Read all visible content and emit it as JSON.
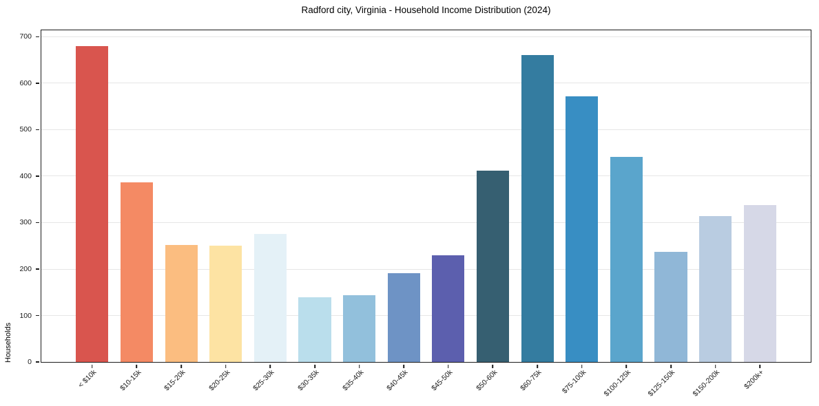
{
  "chart_data": {
    "type": "bar",
    "title": "Radford city, Virginia - Household Income Distribution (2024)",
    "xlabel": "",
    "ylabel": "Households",
    "categories": [
      "< $10k",
      "$10-15k",
      "$15-20k",
      "$20-25k",
      "$25-30k",
      "$30-35k",
      "$35-40k",
      "$40-45k",
      "$45-50k",
      "$50-60k",
      "$60-75k",
      "$75-100k",
      "$100-125k",
      "$125-150k",
      "$150-200k",
      "$200k+"
    ],
    "values": [
      680,
      387,
      252,
      250,
      276,
      140,
      144,
      191,
      230,
      412,
      660,
      572,
      441,
      237,
      314,
      338
    ],
    "bar_colors": [
      "#d9554e",
      "#f48a64",
      "#fbbd80",
      "#fde3a3",
      "#e4f1f7",
      "#badeec",
      "#92c0dc",
      "#6e93c5",
      "#5c5fae",
      "#365f71",
      "#347ca0",
      "#388ec3",
      "#5aa5cc",
      "#90b7d7",
      "#b9cce1",
      "#d6d8e7"
    ],
    "ylim": [
      0,
      714
    ],
    "yticks": [
      0,
      100,
      200,
      300,
      400,
      500,
      600,
      700
    ],
    "grid": "horizontal-only",
    "legend_position": "none"
  },
  "style_colors": {
    "background": "#ffffff",
    "gridline": "#e6e6e6",
    "spine": "#1a1a1a",
    "tick_text": "#1a1a1a",
    "title_text": "#000000"
  }
}
